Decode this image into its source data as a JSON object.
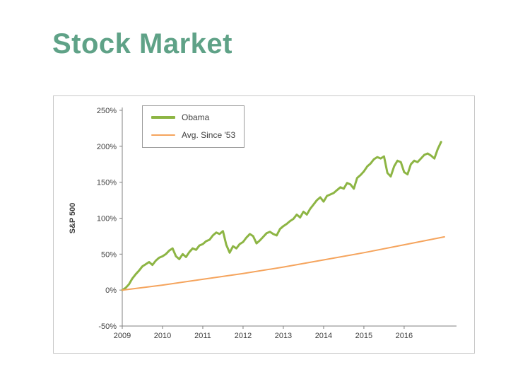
{
  "page": {
    "title": "Stock Market",
    "title_color": "#5FA287",
    "background": "#FFFFFF"
  },
  "chart_data": {
    "type": "line",
    "title": "",
    "xlabel": "",
    "ylabel": "S&P 500",
    "ylim": [
      -50,
      250
    ],
    "yticks": [
      250,
      200,
      150,
      100,
      50,
      0,
      -50
    ],
    "ytick_suffix": "%",
    "xlim": [
      2009,
      2017.3
    ],
    "xticks": [
      2009,
      2010,
      2011,
      2012,
      2013,
      2014,
      2015,
      2016
    ],
    "grid": false,
    "legend_position": "top-left",
    "axis_color": "#808080",
    "tick_label_color": "#3F3F3F",
    "series": [
      {
        "name": "Obama",
        "color": "#8DB544",
        "stroke_width": 3,
        "x_start": 2009.0,
        "x_step_months": 1,
        "values": [
          0,
          3,
          8,
          16,
          22,
          27,
          33,
          36,
          39,
          35,
          41,
          45,
          47,
          50,
          55,
          58,
          47,
          43,
          50,
          46,
          53,
          58,
          56,
          62,
          64,
          68,
          70,
          76,
          80,
          78,
          82,
          63,
          52,
          61,
          58,
          64,
          67,
          73,
          78,
          75,
          65,
          69,
          74,
          79,
          81,
          78,
          76,
          85,
          89,
          92,
          96,
          99,
          105,
          101,
          109,
          105,
          113,
          119,
          125,
          129,
          123,
          131,
          133,
          135,
          139,
          143,
          141,
          149,
          147,
          141,
          156,
          160,
          165,
          172,
          176,
          182,
          185,
          183,
          186,
          163,
          158,
          172,
          180,
          178,
          164,
          161,
          175,
          180,
          178,
          183,
          188,
          190,
          187,
          183,
          196,
          206
        ]
      },
      {
        "name": "Avg. Since '53",
        "color": "#F5A45D",
        "stroke_width": 2,
        "x_start": 2009.0,
        "x_step_months": 12,
        "values": [
          0,
          7,
          15,
          23,
          32,
          42,
          52,
          63,
          74
        ]
      }
    ]
  }
}
